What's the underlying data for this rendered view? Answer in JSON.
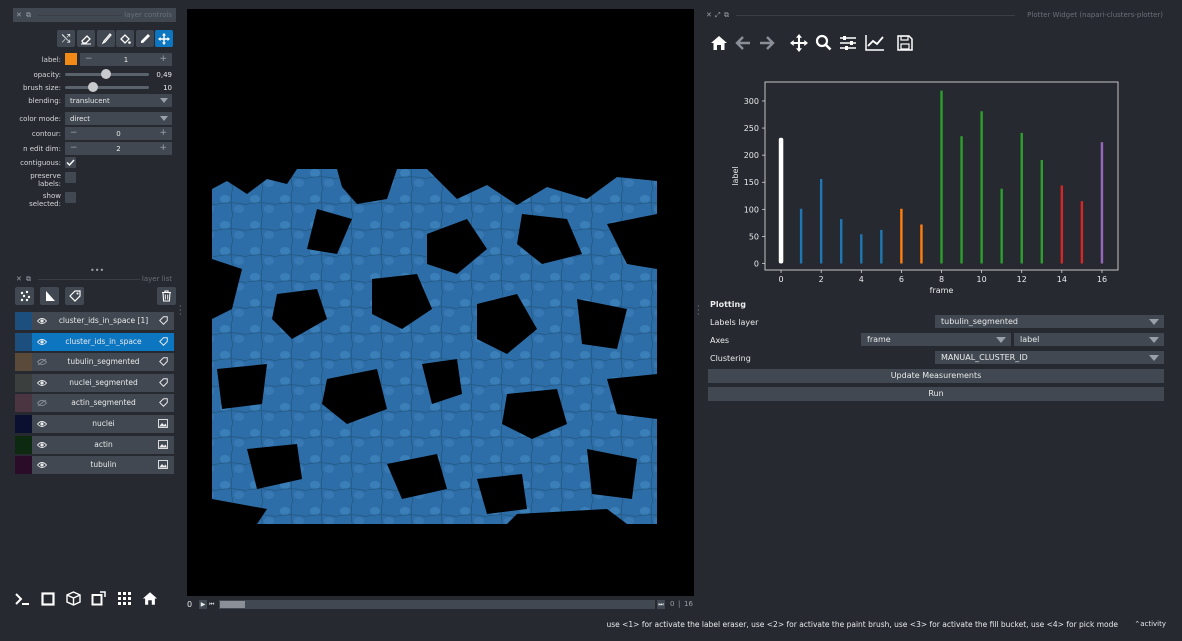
{
  "layer_controls": {
    "title": "layer controls",
    "label_label": "label:",
    "label_value": "1",
    "label_color": "#f28a17",
    "opacity_label": "opacity:",
    "opacity_value": "0,49",
    "opacity_level": 0.49,
    "brush_label": "brush size:",
    "brush_value": "10",
    "brush_level": 0.1,
    "blending_label": "blending:",
    "blending_value": "translucent",
    "color_mode_label": "color mode:",
    "color_mode_value": "direct",
    "contour_label": "contour:",
    "contour_value": "0",
    "n_edit_dim_label": "n edit dim:",
    "n_edit_dim_value": "2",
    "contiguous_label": "contiguous:",
    "preserve_label_1": "preserve",
    "preserve_label_2": "labels:",
    "show_label_1": "show",
    "show_label_2": "selected:",
    "tools": [
      "shuffle-icon",
      "eraser-icon",
      "paint-brush-icon",
      "fill-bucket-icon",
      "color-picker-icon",
      "pan-zoom-icon"
    ],
    "active_tool": "pan-zoom-icon"
  },
  "layer_list": {
    "title": "layer list",
    "layers": [
      {
        "name": "cluster_ids_in_space [1]",
        "visible": true,
        "type": "labels",
        "selected": false
      },
      {
        "name": "cluster_ids_in_space",
        "visible": true,
        "type": "labels",
        "selected": true
      },
      {
        "name": "tubulin_segmented",
        "visible": false,
        "type": "labels",
        "selected": false
      },
      {
        "name": "nuclei_segmented",
        "visible": true,
        "type": "labels",
        "selected": false
      },
      {
        "name": "actin_segmented",
        "visible": false,
        "type": "labels",
        "selected": false
      },
      {
        "name": "nuclei",
        "visible": true,
        "type": "image",
        "selected": false
      },
      {
        "name": "actin",
        "visible": true,
        "type": "image",
        "selected": false
      },
      {
        "name": "tubulin",
        "visible": true,
        "type": "image",
        "selected": false
      }
    ]
  },
  "bottom_buttons": [
    "console-icon",
    "square-icon",
    "3d-cube-icon",
    "roll-icon",
    "grid-icon",
    "home-icon"
  ],
  "dims_slider": {
    "current": "0",
    "sep": "|",
    "max": "16",
    "position": 0
  },
  "plotter": {
    "title": "Plotter Widget (napari-clusters-plotter)",
    "toolbar": [
      "home-icon",
      "back-arrow-icon",
      "forward-arrow-icon",
      "pan-icon",
      "zoom-icon",
      "configure-icon",
      "edit-axis-icon",
      "save-icon"
    ],
    "plotting_heading": "Plotting",
    "labels_layer_label": "Labels layer",
    "labels_layer_value": "tubulin_segmented",
    "axes_label": "Axes",
    "axes_x_value": "frame",
    "axes_y_value": "label",
    "clustering_label": "Clustering",
    "clustering_value": "MANUAL_CLUSTER_ID",
    "update_button": "Update Measurements",
    "run_button": "Run"
  },
  "chart_data": {
    "type": "bar",
    "xlabel": "frame",
    "ylabel": "label",
    "xlim": [
      -0.8,
      16.8
    ],
    "ylim": [
      -12,
      335
    ],
    "xticks": [
      0,
      2,
      4,
      6,
      8,
      10,
      12,
      14,
      16
    ],
    "yticks": [
      0,
      50,
      100,
      150,
      200,
      250,
      300
    ],
    "x": [
      0,
      1,
      2,
      3,
      4,
      5,
      6,
      7,
      8,
      9,
      10,
      11,
      12,
      13,
      14,
      15,
      16
    ],
    "values": [
      232,
      101,
      156,
      82,
      54,
      62,
      101,
      72,
      319,
      235,
      281,
      138,
      241,
      191,
      144,
      115,
      224
    ],
    "colors": [
      "#ffffff",
      "#1f77b4",
      "#1f77b4",
      "#1f77b4",
      "#1f77b4",
      "#1f77b4",
      "#ff7f0e",
      "#ff7f0e",
      "#2ca02c",
      "#2ca02c",
      "#2ca02c",
      "#2ca02c",
      "#2ca02c",
      "#2ca02c",
      "#d62728",
      "#d62728",
      "#9467bd"
    ],
    "grid": false
  },
  "status": {
    "message": "use <1> for activate the label eraser, use <2> for activate the paint brush, use <3> for activate the fill bucket, use <4> for pick mode",
    "activity": "activity"
  }
}
